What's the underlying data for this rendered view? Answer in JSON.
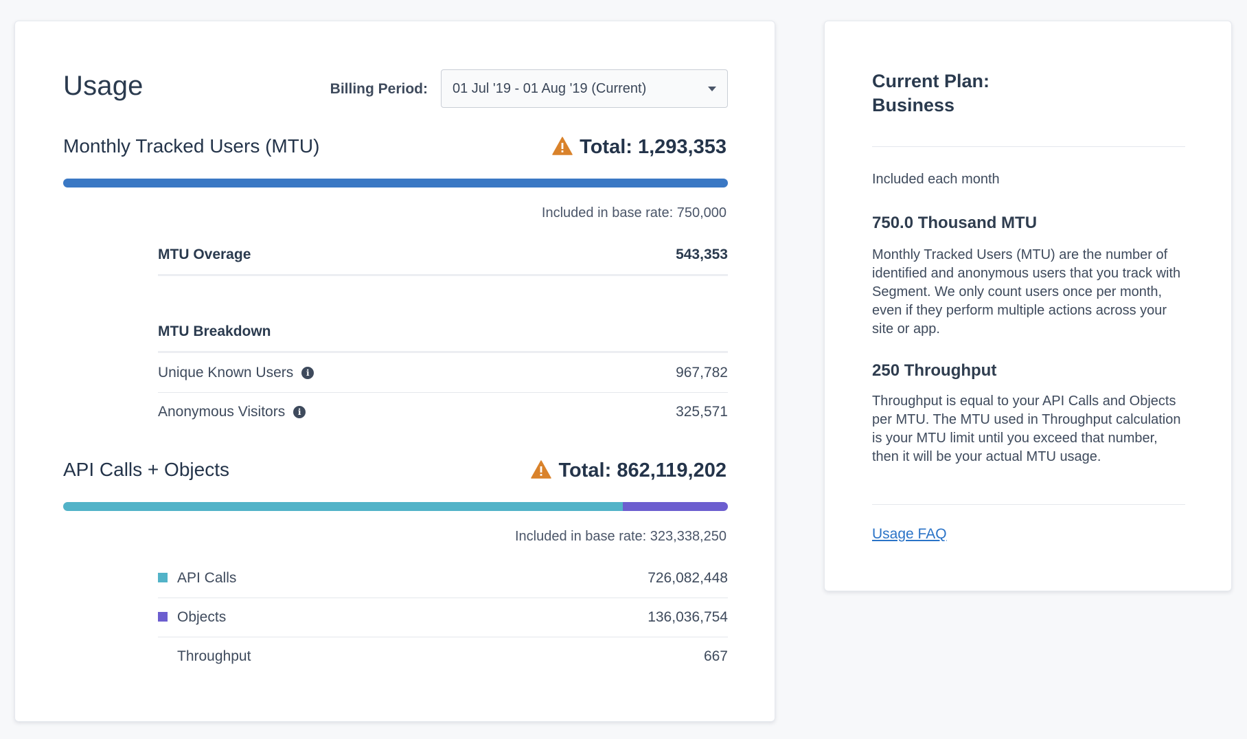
{
  "usage": {
    "title": "Usage",
    "billing_label": "Billing Period:",
    "billing_value": "01 Jul '19 - 01 Aug '19 (Current)",
    "mtu": {
      "title": "Monthly Tracked Users (MTU)",
      "total_label": "Total: 1,293,353",
      "bar_fill_fraction": 1.0,
      "bar_color": "#3a78c4",
      "base_rate": "Included in base rate: 750,000",
      "overage_label": "MTU Overage",
      "overage_value": "543,353",
      "breakdown_label": "MTU Breakdown",
      "rows": [
        {
          "label": "Unique Known Users",
          "value": "967,782"
        },
        {
          "label": "Anonymous Visitors",
          "value": "325,571"
        }
      ]
    },
    "api": {
      "title": "API Calls + Objects",
      "total_label": "Total: 862,119,202",
      "api_fraction": 0.8422,
      "objects_fraction": 0.1578,
      "api_color": "#52b3c8",
      "objects_color": "#6c5ecf",
      "base_rate": "Included in base rate: 323,338,250",
      "rows": [
        {
          "label": "API Calls",
          "value": "726,082,448"
        },
        {
          "label": "Objects",
          "value": "136,036,754"
        },
        {
          "label": "Throughput",
          "value": "667"
        }
      ]
    },
    "warning_color": "#d9822b"
  },
  "plan": {
    "title_line1": "Current Plan:",
    "title_line2": "Business",
    "included_label": "Included each month",
    "mtu_heading": "750.0 Thousand MTU",
    "mtu_desc": "Monthly Tracked Users (MTU) are the number of identified and anonymous users that you track with Segment. We only count users once per month, even if they perform multiple actions across your site or app.",
    "throughput_heading": "250 Throughput",
    "throughput_desc": "Throughput is equal to your API Calls and Objects per MTU. The MTU used in Throughput calculation is your MTU limit until you exceed that number, then it will be your actual MTU usage.",
    "faq_link": "Usage FAQ"
  }
}
